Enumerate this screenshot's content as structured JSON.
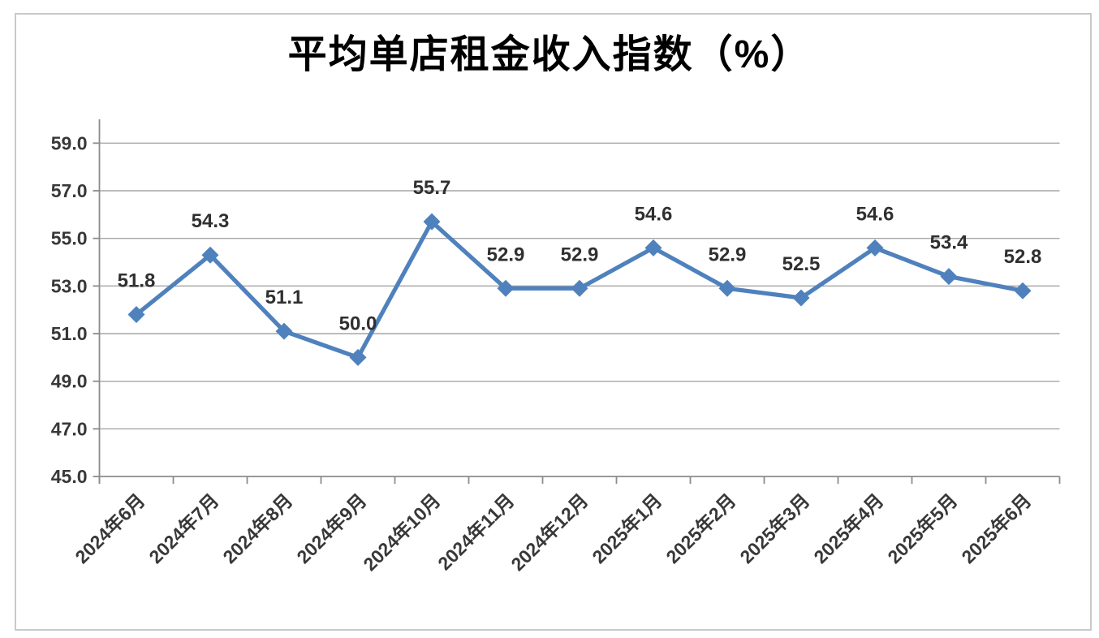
{
  "chart_data": {
    "type": "line",
    "title": "平均单店租金收入指数（%）",
    "categories": [
      "2024年6月",
      "2024年7月",
      "2024年8月",
      "2024年9月",
      "2024年10月",
      "2024年11月",
      "2024年12月",
      "2025年1月",
      "2025年2月",
      "2025年3月",
      "2025年4月",
      "2025年5月",
      "2025年6月"
    ],
    "series": [
      {
        "name": "平均单店租金收入指数",
        "values": [
          51.8,
          54.3,
          51.1,
          50.0,
          55.7,
          52.9,
          52.9,
          54.6,
          52.9,
          52.5,
          54.6,
          53.4,
          52.8
        ]
      }
    ],
    "data_labels": [
      "51.8",
      "54.3",
      "51.1",
      "50.0",
      "55.7",
      "52.9",
      "52.9",
      "54.6",
      "52.9",
      "52.5",
      "54.6",
      "53.4",
      "52.8"
    ],
    "xlabel": "",
    "ylabel": "",
    "ylim": [
      45.0,
      60.0
    ],
    "ytick_values": [
      45.0,
      47.0,
      49.0,
      51.0,
      53.0,
      55.0,
      57.0,
      59.0
    ],
    "ytick_labels": [
      "45.0",
      "47.0",
      "49.0",
      "51.0",
      "53.0",
      "55.0",
      "57.0",
      "59.0"
    ],
    "grid": "horizontal-only",
    "legend": "none",
    "marker": "diamond",
    "colors": {
      "line": "#4F81BD",
      "grid": "#a6a6a6",
      "axis": "#8c8c8c",
      "tick_text": "#383838",
      "data_label": "#303030",
      "title": "#000000",
      "frame_border": "#c9c9c9",
      "background": "#ffffff"
    }
  }
}
